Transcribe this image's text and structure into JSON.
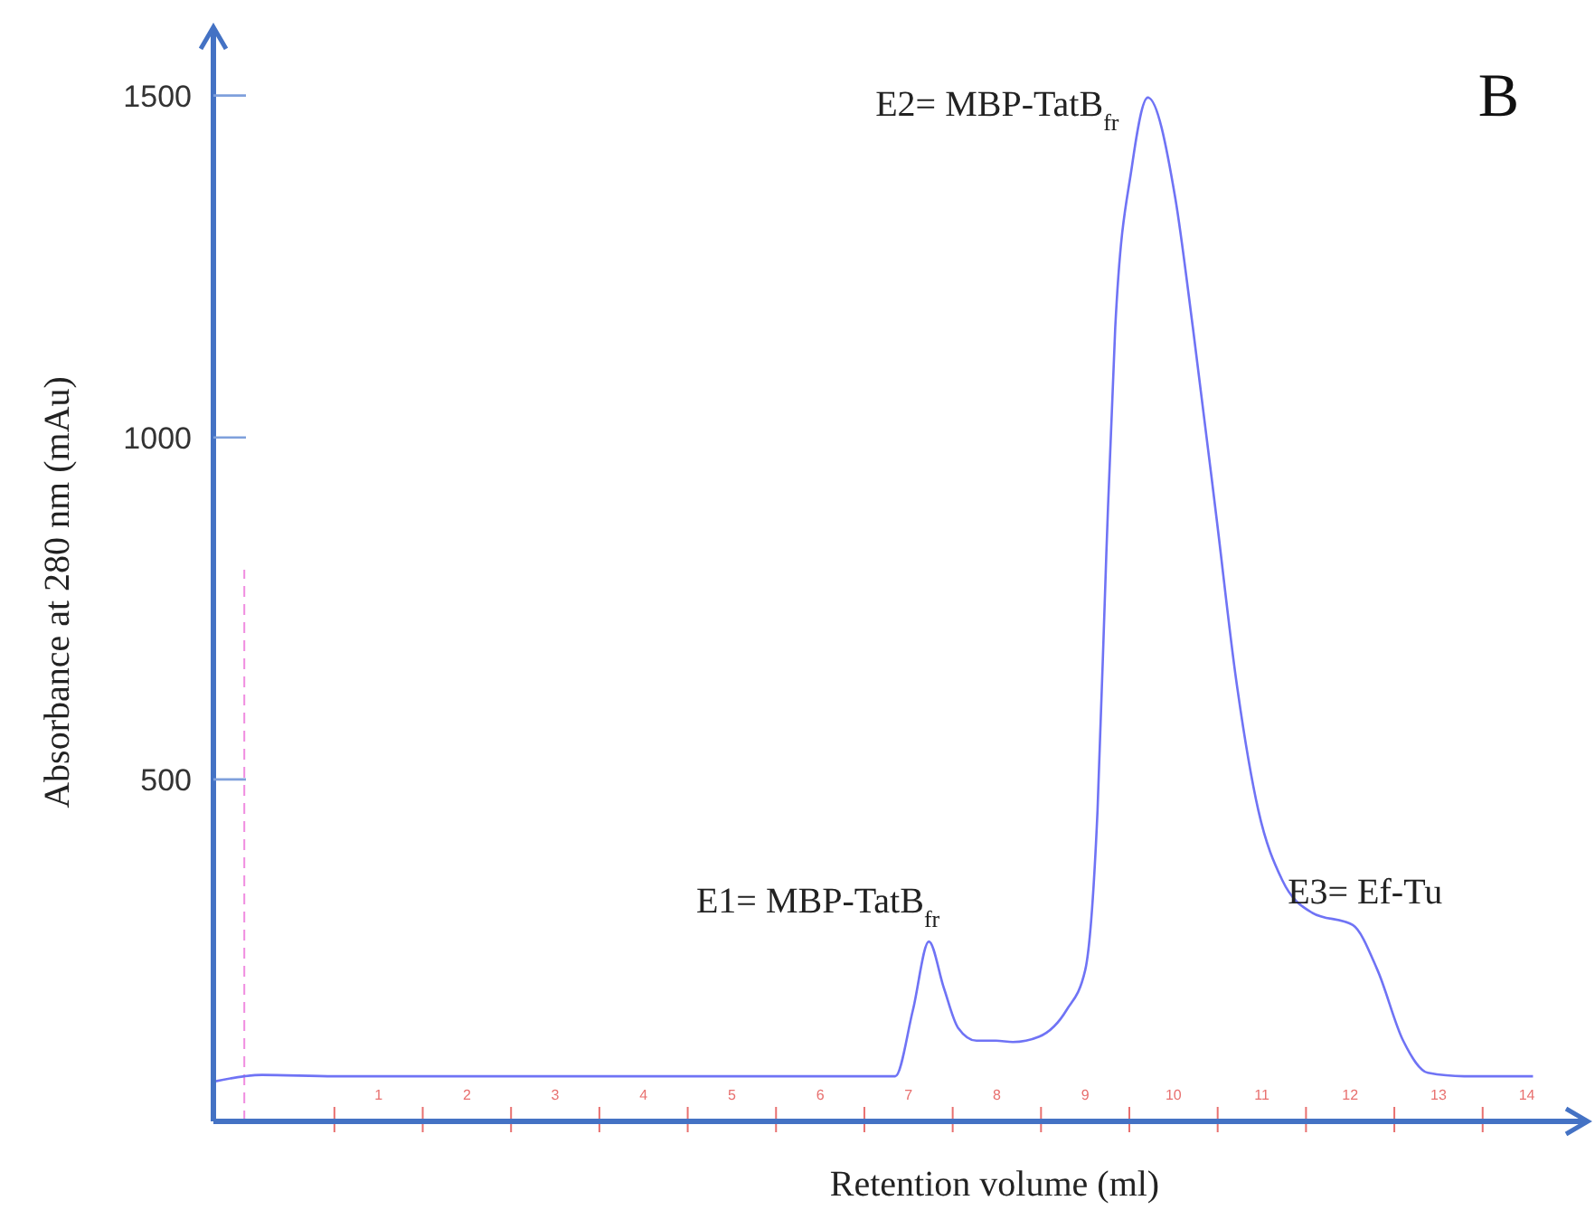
{
  "chart_data": {
    "type": "line",
    "xlabel": "Retention volume (ml)",
    "ylabel": "Absorbance at 280 nm (mAu)",
    "annotations": [
      {
        "text": "E1= MBP-TatB$_{fr}$",
        "x": 6.73,
        "y": 263
      },
      {
        "text": "E2= MBP-TatB$_{fr}$",
        "x": 9.21,
        "y": 1497
      },
      {
        "text": "E3= Ef-Tu",
        "x": 11.53,
        "y": 287
      },
      "B"
    ],
    "series": [
      {
        "color": "#6f73f5",
        "x": [
          -1.37,
          -1.02,
          -0.82,
          0,
          2.35,
          6.04,
          6.35,
          6.55,
          6.73,
          6.9,
          7.06,
          7.27,
          7.49,
          7.68,
          7.98,
          8.29,
          8.5,
          8.64,
          8.74,
          8.84,
          9.03,
          9.21,
          9.52,
          9.72,
          9.99,
          10.21,
          10.46,
          10.73,
          11.07,
          11.53,
          11.81,
          12.1,
          12.38,
          12.79,
          13.57
        ],
        "values": [
          58,
          66,
          68,
          66,
          66,
          66,
          66,
          163,
          263,
          195,
          137,
          118,
          118,
          116,
          124,
          163,
          221,
          455,
          832,
          1160,
          1397,
          1497,
          1350,
          1160,
          879,
          645,
          455,
          353,
          305,
          287,
          221,
          118,
          71,
          66,
          66
        ]
      }
    ],
    "xlim": [
      -1.37,
      14.19
    ],
    "ylim": [
      0,
      1600
    ],
    "xticks": [
      {
        "value": 0,
        "label": null
      },
      {
        "value": 0.5,
        "label": "1"
      },
      {
        "value": 1,
        "label": null
      },
      {
        "value": 1.5,
        "label": "2"
      },
      {
        "value": 2,
        "label": null
      },
      {
        "value": 2.5,
        "label": "3"
      },
      {
        "value": 3,
        "label": null
      },
      {
        "value": 3.5,
        "label": "4"
      },
      {
        "value": 4,
        "label": null
      },
      {
        "value": 4.5,
        "label": "5"
      },
      {
        "value": 5,
        "label": null
      },
      {
        "value": 5.5,
        "label": "6"
      },
      {
        "value": 6,
        "label": null
      },
      {
        "value": 6.5,
        "label": "7"
      },
      {
        "value": 7,
        "label": null
      },
      {
        "value": 7.5,
        "label": "8"
      },
      {
        "value": 8,
        "label": null
      },
      {
        "value": 8.5,
        "label": "9"
      },
      {
        "value": 9,
        "label": null
      },
      {
        "value": 9.5,
        "label": "10"
      },
      {
        "value": 10,
        "label": null
      },
      {
        "value": 10.5,
        "label": "11"
      },
      {
        "value": 11,
        "label": null
      },
      {
        "value": 11.5,
        "label": "12"
      },
      {
        "value": 12,
        "label": null
      },
      {
        "value": 12.5,
        "label": "13"
      },
      {
        "value": 13,
        "label": null
      },
      {
        "value": 13.5,
        "label": "14"
      }
    ],
    "yticks": [
      500,
      1000,
      1500
    ],
    "ref_lines": [
      {
        "axis": "x",
        "value": -1.02,
        "color": "#f08ce0",
        "line_style": "dashed"
      }
    ],
    "grid": false,
    "marker": "none",
    "line_style": "solid"
  }
}
